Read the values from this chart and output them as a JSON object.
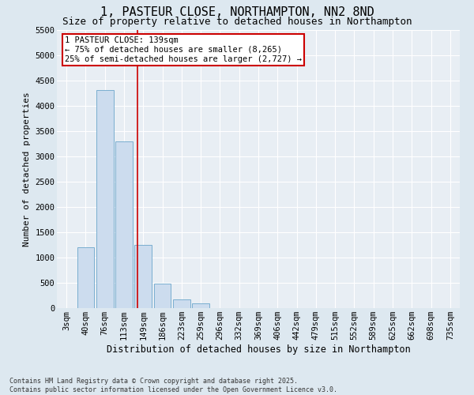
{
  "title": "1, PASTEUR CLOSE, NORTHAMPTON, NN2 8ND",
  "subtitle": "Size of property relative to detached houses in Northampton",
  "xlabel": "Distribution of detached houses by size in Northampton",
  "ylabel": "Number of detached properties",
  "categories": [
    "3sqm",
    "40sqm",
    "76sqm",
    "113sqm",
    "149sqm",
    "186sqm",
    "223sqm",
    "259sqm",
    "296sqm",
    "332sqm",
    "369sqm",
    "406sqm",
    "442sqm",
    "479sqm",
    "515sqm",
    "552sqm",
    "589sqm",
    "625sqm",
    "662sqm",
    "698sqm",
    "735sqm"
  ],
  "bar_values": [
    0,
    1200,
    4300,
    3300,
    1250,
    490,
    175,
    100,
    0,
    0,
    0,
    0,
    0,
    0,
    0,
    0,
    0,
    0,
    0,
    0,
    0
  ],
  "bar_color": "#ccdcee",
  "bar_edgecolor": "#7aaed0",
  "ylim": [
    0,
    5500
  ],
  "yticks": [
    0,
    500,
    1000,
    1500,
    2000,
    2500,
    3000,
    3500,
    4000,
    4500,
    5000,
    5500
  ],
  "property_label": "1 PASTEUR CLOSE: 139sqm",
  "annotation_line1": "← 75% of detached houses are smaller (8,265)",
  "annotation_line2": "25% of semi-detached houses are larger (2,727) →",
  "vline_color": "#cc0000",
  "vline_x": 3.72,
  "annotation_box_color": "#cc0000",
  "bg_color": "#dde8f0",
  "plot_bg_color": "#e8eef4",
  "footer_line1": "Contains HM Land Registry data © Crown copyright and database right 2025.",
  "footer_line2": "Contains public sector information licensed under the Open Government Licence v3.0.",
  "title_fontsize": 11,
  "subtitle_fontsize": 9,
  "xlabel_fontsize": 8.5,
  "ylabel_fontsize": 8,
  "tick_fontsize": 7.5,
  "annot_fontsize": 7.5,
  "footer_fontsize": 6
}
